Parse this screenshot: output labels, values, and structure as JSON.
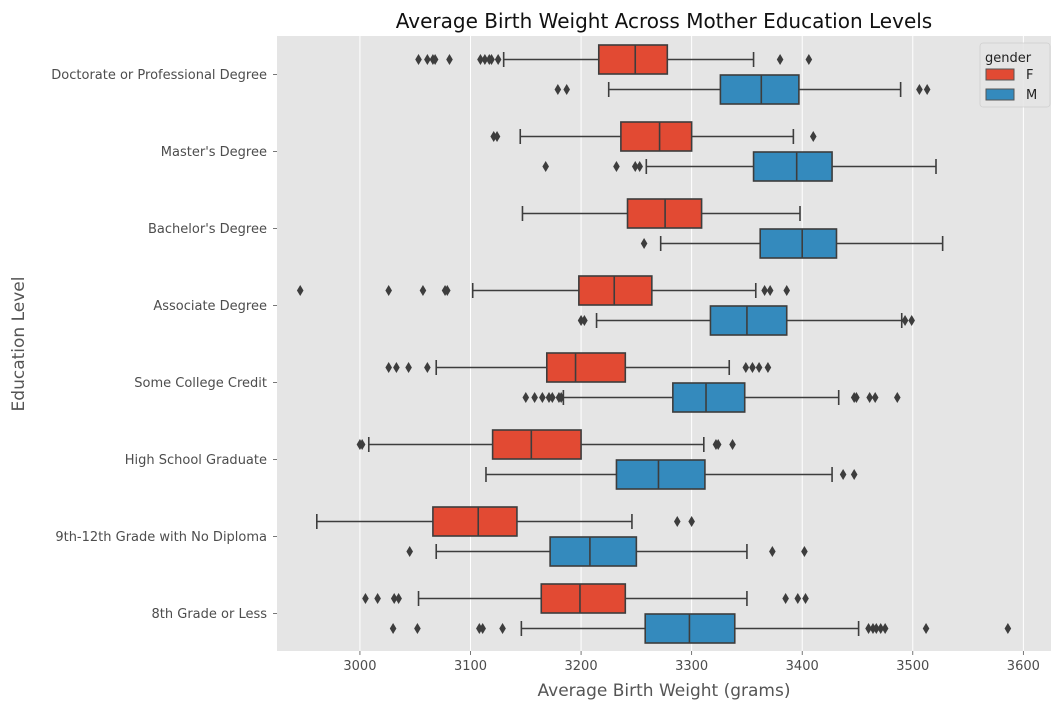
{
  "chart_data": {
    "type": "boxplot",
    "orientation": "horizontal",
    "title": "Average Birth Weight Across Mother Education Levels",
    "xlabel": "Average Birth Weight (grams)",
    "ylabel": "Education Level",
    "xlim": [
      2925,
      3625
    ],
    "xticks": [
      3000,
      3100,
      3200,
      3300,
      3400,
      3500,
      3600
    ],
    "grid": true,
    "legend": {
      "title": "gender",
      "position": "top-right"
    },
    "series": [
      {
        "name": "F",
        "color": "#E24A33"
      },
      {
        "name": "M",
        "color": "#348ABD"
      }
    ],
    "categories": [
      "Doctorate or Professional Degree",
      "Master's Degree",
      "Bachelor's Degree",
      "Associate Degree",
      "Some College Credit",
      "High School Graduate",
      "9th-12th Grade with No Diploma",
      "8th Grade or Less"
    ],
    "boxes": [
      {
        "category": "Doctorate or Professional Degree",
        "series": "F",
        "whislo": 3130,
        "q1": 3216,
        "med": 3249,
        "q3": 3278,
        "whishi": 3356,
        "fliers": [
          3053,
          3061,
          3066,
          3068,
          3081,
          3109,
          3113,
          3117,
          3119,
          3125,
          3380,
          3406
        ]
      },
      {
        "category": "Doctorate or Professional Degree",
        "series": "M",
        "whislo": 3225,
        "q1": 3326,
        "med": 3363,
        "q3": 3397,
        "whishi": 3489,
        "fliers": [
          3179,
          3187,
          3506,
          3513
        ]
      },
      {
        "category": "Master's Degree",
        "series": "F",
        "whislo": 3145,
        "q1": 3236,
        "med": 3271,
        "q3": 3300,
        "whishi": 3392,
        "fliers": [
          3121,
          3124,
          3410
        ]
      },
      {
        "category": "Master's Degree",
        "series": "M",
        "whislo": 3259,
        "q1": 3356,
        "med": 3395,
        "q3": 3427,
        "whishi": 3521,
        "fliers": [
          3168,
          3232,
          3249,
          3253
        ]
      },
      {
        "category": "Bachelor's Degree",
        "series": "F",
        "whislo": 3147,
        "q1": 3242,
        "med": 3276,
        "q3": 3309,
        "whishi": 3398,
        "fliers": []
      },
      {
        "category": "Bachelor's Degree",
        "series": "M",
        "whislo": 3272,
        "q1": 3362,
        "med": 3400,
        "q3": 3431,
        "whishi": 3527,
        "fliers": [
          3257
        ]
      },
      {
        "category": "Associate Degree",
        "series": "F",
        "whislo": 3102,
        "q1": 3198,
        "med": 3230,
        "q3": 3264,
        "whishi": 3358,
        "fliers": [
          2946,
          3026,
          3057,
          3077,
          3079,
          3366,
          3371,
          3386
        ]
      },
      {
        "category": "Associate Degree",
        "series": "M",
        "whislo": 3214,
        "q1": 3317,
        "med": 3350,
        "q3": 3386,
        "whishi": 3490,
        "fliers": [
          3200,
          3203,
          3493,
          3499
        ]
      },
      {
        "category": "Some College Credit",
        "series": "F",
        "whislo": 3069,
        "q1": 3169,
        "med": 3195,
        "q3": 3240,
        "whishi": 3334,
        "fliers": [
          3026,
          3033,
          3044,
          3061,
          3349,
          3355,
          3361,
          3369
        ]
      },
      {
        "category": "Some College Credit",
        "series": "M",
        "whislo": 3184,
        "q1": 3283,
        "med": 3313,
        "q3": 3348,
        "whishi": 3433,
        "fliers": [
          3150,
          3158,
          3165,
          3171,
          3174,
          3180,
          3182,
          3447,
          3449,
          3461,
          3466,
          3486
        ]
      },
      {
        "category": "High School Graduate",
        "series": "F",
        "whislo": 3008,
        "q1": 3120,
        "med": 3155,
        "q3": 3200,
        "whishi": 3311,
        "fliers": [
          3000,
          3002,
          3322,
          3324,
          3337
        ]
      },
      {
        "category": "High School Graduate",
        "series": "M",
        "whislo": 3114,
        "q1": 3232,
        "med": 3270,
        "q3": 3312,
        "whishi": 3427,
        "fliers": [
          3437,
          3447
        ]
      },
      {
        "category": "9th-12th Grade with No Diploma",
        "series": "F",
        "whislo": 2961,
        "q1": 3066,
        "med": 3107,
        "q3": 3142,
        "whishi": 3246,
        "fliers": [
          3287,
          3300
        ]
      },
      {
        "category": "9th-12th Grade with No Diploma",
        "series": "M",
        "whislo": 3069,
        "q1": 3172,
        "med": 3208,
        "q3": 3250,
        "whishi": 3350,
        "fliers": [
          3045,
          3373,
          3402
        ]
      },
      {
        "category": "8th Grade or Less",
        "series": "F",
        "whislo": 3053,
        "q1": 3164,
        "med": 3199,
        "q3": 3240,
        "whishi": 3350,
        "fliers": [
          3005,
          3016,
          3031,
          3035,
          3385,
          3396,
          3403
        ]
      },
      {
        "category": "8th Grade or Less",
        "series": "M",
        "whislo": 3146,
        "q1": 3258,
        "med": 3298,
        "q3": 3339,
        "whishi": 3451,
        "fliers": [
          3030,
          3052,
          3108,
          3111,
          3129,
          3460,
          3464,
          3467,
          3471,
          3475,
          3512,
          3586
        ]
      }
    ]
  }
}
